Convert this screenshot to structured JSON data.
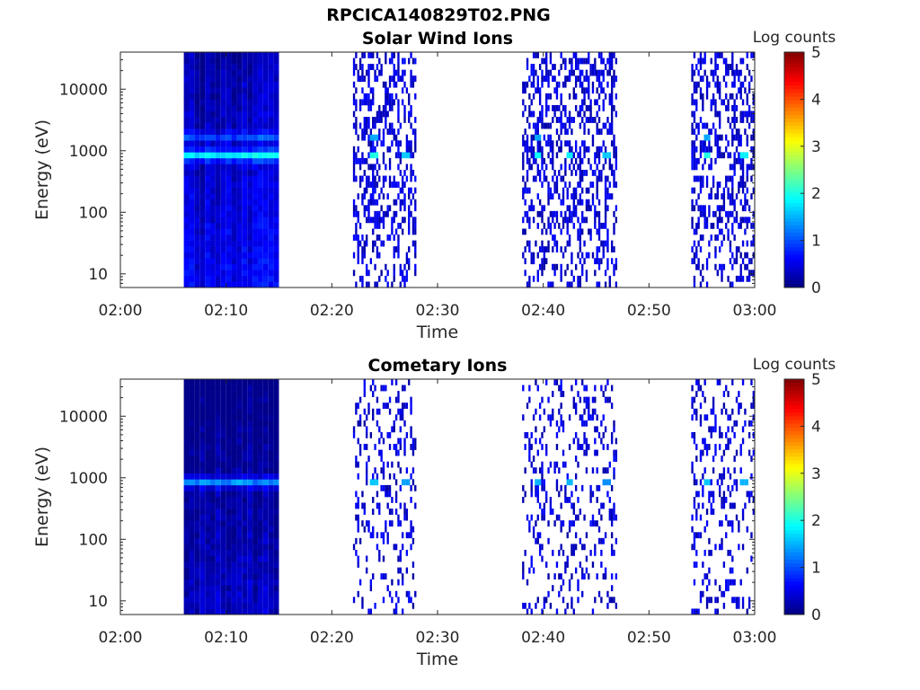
{
  "page_title": "RPCICA140829T02.PNG",
  "chart_data": [
    {
      "type": "heatmap",
      "title": "Solar Wind Ions",
      "xlabel": "Time",
      "ylabel": "Energy (eV)",
      "x_range": [
        "02:00",
        "03:00"
      ],
      "x_ticks": [
        "02:00",
        "02:10",
        "02:20",
        "02:30",
        "02:40",
        "02:50",
        "03:00"
      ],
      "y_scale": "log",
      "y_range": [
        6,
        40000
      ],
      "y_ticks": [
        10,
        100,
        1000,
        10000
      ],
      "y_tick_labels": [
        "10",
        "100",
        "1000",
        "10000"
      ],
      "colorbar": {
        "label": "Log counts",
        "range": [
          0,
          5
        ],
        "ticks": [
          "0",
          "1",
          "2",
          "3",
          "4",
          "5"
        ],
        "colormap": "jet"
      },
      "grid": false,
      "blocks": [
        {
          "kind": "dense",
          "start": "02:06",
          "end": "02:15",
          "mean_log_counts": 0.45,
          "peak_energy_eV": 850,
          "peak_log_counts": 1.9,
          "secondary_energy_eV": 1700,
          "secondary_log_counts": 1.1
        },
        {
          "kind": "sparse",
          "start": "02:22",
          "end": "02:28",
          "hotspots": [
            {
              "time": "02:24",
              "energy_eV": 850,
              "log_counts": 2.0
            },
            {
              "time": "02:27",
              "energy_eV": 850,
              "log_counts": 1.6
            },
            {
              "time": "02:24",
              "energy_eV": 1700,
              "log_counts": 1.5
            }
          ]
        },
        {
          "kind": "sparse",
          "start": "02:38",
          "end": "02:47",
          "hotspots": [
            {
              "time": "02:39.5",
              "energy_eV": 850,
              "log_counts": 1.9
            },
            {
              "time": "02:42.5",
              "energy_eV": 850,
              "log_counts": 1.8
            },
            {
              "time": "02:46",
              "energy_eV": 850,
              "log_counts": 1.6
            },
            {
              "time": "02:39.5",
              "energy_eV": 1700,
              "log_counts": 1.5
            }
          ]
        },
        {
          "kind": "sparse",
          "start": "02:54",
          "end": "03:00",
          "hotspots": [
            {
              "time": "02:55.5",
              "energy_eV": 850,
              "log_counts": 2.0
            },
            {
              "time": "02:59",
              "energy_eV": 850,
              "log_counts": 1.8
            },
            {
              "time": "02:55.5",
              "energy_eV": 1700,
              "log_counts": 1.5
            }
          ]
        }
      ]
    },
    {
      "type": "heatmap",
      "title": "Cometary Ions",
      "xlabel": "Time",
      "ylabel": "Energy (eV)",
      "x_range": [
        "02:00",
        "03:00"
      ],
      "x_ticks": [
        "02:00",
        "02:10",
        "02:20",
        "02:30",
        "02:40",
        "02:50",
        "03:00"
      ],
      "y_scale": "log",
      "y_range": [
        6,
        40000
      ],
      "y_ticks": [
        10,
        100,
        1000,
        10000
      ],
      "y_tick_labels": [
        "10",
        "100",
        "1000",
        "10000"
      ],
      "colorbar": {
        "label": "Log counts",
        "range": [
          0,
          5
        ],
        "ticks": [
          "0",
          "1",
          "2",
          "3",
          "4",
          "5"
        ],
        "colormap": "jet"
      },
      "grid": false,
      "blocks": [
        {
          "kind": "dense",
          "start": "02:06",
          "end": "02:15",
          "mean_log_counts": 0.2,
          "peak_energy_eV": 850,
          "peak_log_counts": 1.4
        },
        {
          "kind": "sparse",
          "start": "02:22",
          "end": "02:28",
          "hotspots": [
            {
              "time": "02:24",
              "energy_eV": 850,
              "log_counts": 1.6
            },
            {
              "time": "02:27",
              "energy_eV": 850,
              "log_counts": 1.4
            }
          ]
        },
        {
          "kind": "sparse",
          "start": "02:38",
          "end": "02:47",
          "hotspots": [
            {
              "time": "02:39.5",
              "energy_eV": 850,
              "log_counts": 1.5
            },
            {
              "time": "02:42.5",
              "energy_eV": 850,
              "log_counts": 1.5
            },
            {
              "time": "02:46",
              "energy_eV": 850,
              "log_counts": 1.3
            }
          ]
        },
        {
          "kind": "sparse",
          "start": "02:54",
          "end": "03:00",
          "hotspots": [
            {
              "time": "02:55.5",
              "energy_eV": 850,
              "log_counts": 1.6
            },
            {
              "time": "02:59",
              "energy_eV": 850,
              "log_counts": 1.5
            }
          ]
        }
      ]
    }
  ]
}
